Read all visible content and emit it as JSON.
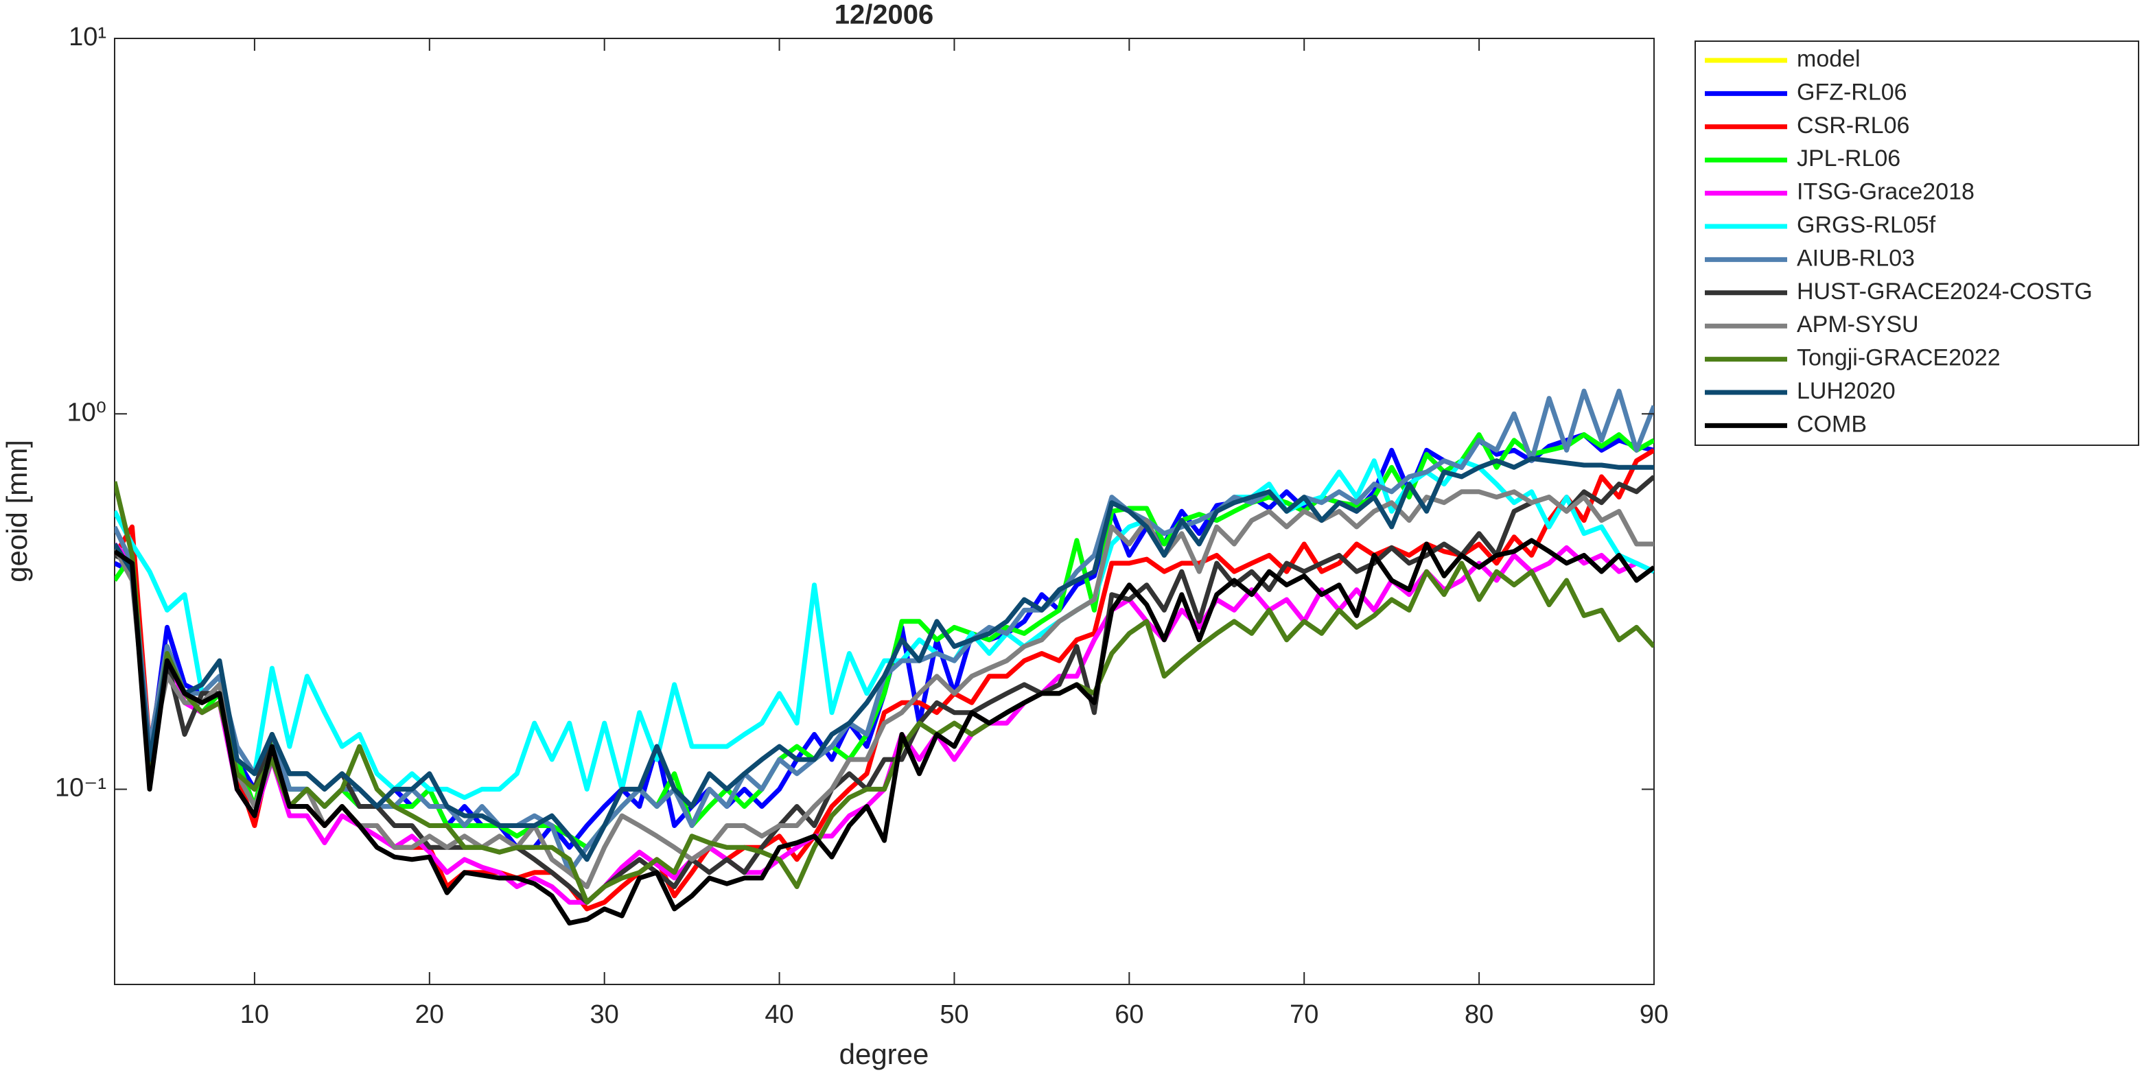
{
  "chart_data": {
    "type": "line",
    "title": "12/2006",
    "x_label": "degree",
    "y_label": "geoid [mm]",
    "log_y": true,
    "grid": false,
    "legend": "outside-right",
    "xlim": [
      2,
      90
    ],
    "xticks": [
      10,
      20,
      30,
      40,
      50,
      60,
      70,
      80,
      90
    ],
    "ylim": [
      0.0302,
      10
    ],
    "yticks": [
      {
        "value": 0.1,
        "label": "10⁻¹"
      },
      {
        "value": 1,
        "label": "10⁰"
      },
      {
        "value": 10,
        "label": "10¹"
      }
    ],
    "x": [
      2,
      3,
      4,
      5,
      6,
      7,
      8,
      9,
      10,
      11,
      12,
      13,
      14,
      15,
      16,
      17,
      18,
      19,
      20,
      21,
      22,
      23,
      24,
      25,
      26,
      27,
      28,
      29,
      30,
      31,
      32,
      33,
      34,
      35,
      36,
      37,
      38,
      39,
      40,
      41,
      42,
      43,
      44,
      45,
      46,
      47,
      48,
      49,
      50,
      51,
      52,
      53,
      54,
      55,
      56,
      57,
      58,
      59,
      60,
      61,
      62,
      63,
      64,
      65,
      66,
      67,
      68,
      69,
      70,
      71,
      72,
      73,
      74,
      75,
      76,
      77,
      78,
      79,
      80,
      81,
      82,
      83,
      84,
      85,
      86,
      87,
      88,
      89,
      90
    ],
    "series": [
      {
        "name": "model",
        "color": "#ffff00",
        "values": [
          null,
          null,
          null,
          null,
          null,
          null,
          null,
          null,
          null,
          null,
          null,
          null,
          null,
          null,
          null,
          null,
          null,
          null,
          null,
          null,
          null,
          null,
          null,
          null,
          null,
          null,
          null,
          null,
          null,
          null,
          null,
          null,
          null,
          null,
          null,
          null,
          null,
          null,
          null,
          null,
          null,
          null,
          null,
          null,
          null,
          null,
          null,
          null,
          null,
          null,
          null,
          null,
          null,
          null,
          null,
          null,
          null,
          null,
          null,
          null,
          null,
          null,
          null,
          null,
          null,
          null,
          null,
          null,
          null,
          null,
          null,
          null,
          null,
          null,
          null,
          null,
          null,
          null,
          null,
          null,
          null,
          null,
          null,
          null,
          null,
          null,
          null,
          null,
          null
        ]
      },
      {
        "name": "GFZ-RL06",
        "color": "#0000ff",
        "values": [
          0.4,
          0.38,
          0.12,
          0.27,
          0.19,
          0.18,
          0.2,
          0.12,
          0.1,
          0.14,
          0.1,
          0.1,
          0.09,
          0.1,
          0.09,
          0.09,
          0.1,
          0.09,
          0.1,
          0.08,
          0.09,
          0.08,
          0.08,
          0.07,
          0.07,
          0.08,
          0.07,
          0.08,
          0.09,
          0.1,
          0.09,
          0.13,
          0.08,
          0.09,
          0.1,
          0.09,
          0.1,
          0.09,
          0.1,
          0.12,
          0.14,
          0.12,
          0.15,
          0.13,
          0.18,
          0.27,
          0.15,
          0.25,
          0.18,
          0.26,
          0.25,
          0.26,
          0.28,
          0.33,
          0.3,
          0.35,
          0.37,
          0.55,
          0.42,
          0.5,
          0.45,
          0.55,
          0.48,
          0.57,
          0.58,
          0.6,
          0.56,
          0.62,
          0.56,
          0.6,
          0.58,
          0.55,
          0.62,
          0.8,
          0.62,
          0.8,
          0.75,
          0.72,
          0.85,
          0.78,
          0.8,
          0.75,
          0.82,
          0.85,
          0.88,
          0.8,
          0.85,
          0.82,
          0.8
        ]
      },
      {
        "name": "CSR-RL06",
        "color": "#ff0000",
        "values": [
          0.42,
          0.5,
          0.13,
          0.24,
          0.18,
          0.17,
          0.18,
          0.11,
          0.08,
          0.13,
          0.09,
          0.09,
          0.08,
          0.09,
          0.08,
          0.08,
          0.07,
          0.07,
          0.07,
          0.055,
          0.06,
          0.06,
          0.06,
          0.058,
          0.06,
          0.06,
          0.055,
          0.048,
          0.05,
          0.055,
          0.06,
          0.065,
          0.052,
          0.06,
          0.07,
          0.065,
          0.07,
          0.07,
          0.075,
          0.065,
          0.075,
          0.09,
          0.1,
          0.11,
          0.16,
          0.17,
          0.17,
          0.16,
          0.18,
          0.17,
          0.2,
          0.2,
          0.22,
          0.23,
          0.22,
          0.25,
          0.26,
          0.4,
          0.4,
          0.41,
          0.38,
          0.4,
          0.4,
          0.42,
          0.38,
          0.4,
          0.42,
          0.38,
          0.45,
          0.38,
          0.4,
          0.45,
          0.42,
          0.44,
          0.42,
          0.45,
          0.43,
          0.42,
          0.45,
          0.4,
          0.47,
          0.42,
          0.52,
          0.6,
          0.52,
          0.68,
          0.6,
          0.75,
          0.8
        ]
      },
      {
        "name": "JPL-RL06",
        "color": "#00ff00",
        "values": [
          0.36,
          0.42,
          0.12,
          0.24,
          0.18,
          0.16,
          0.18,
          0.12,
          0.09,
          0.14,
          0.1,
          0.1,
          0.09,
          0.1,
          0.09,
          0.09,
          0.09,
          0.09,
          0.1,
          0.08,
          0.08,
          0.08,
          0.08,
          0.075,
          0.08,
          0.08,
          0.075,
          0.07,
          0.08,
          0.09,
          0.1,
          0.09,
          0.11,
          0.08,
          0.09,
          0.1,
          0.09,
          0.1,
          0.12,
          0.13,
          0.12,
          0.13,
          0.12,
          0.14,
          0.18,
          0.28,
          0.28,
          0.25,
          0.27,
          0.26,
          0.25,
          0.27,
          0.26,
          0.28,
          0.3,
          0.46,
          0.3,
          0.55,
          0.56,
          0.56,
          0.45,
          0.52,
          0.54,
          0.52,
          0.55,
          0.58,
          0.6,
          0.58,
          0.55,
          0.6,
          0.58,
          0.57,
          0.6,
          0.72,
          0.6,
          0.78,
          0.7,
          0.75,
          0.88,
          0.72,
          0.85,
          0.78,
          0.8,
          0.82,
          0.88,
          0.82,
          0.88,
          0.8,
          0.85
        ]
      },
      {
        "name": "ITSG-Grace2018",
        "color": "#ff00ff",
        "values": [
          0.45,
          0.4,
          0.11,
          0.23,
          0.17,
          0.16,
          0.17,
          0.1,
          0.085,
          0.12,
          0.085,
          0.085,
          0.072,
          0.085,
          0.08,
          0.075,
          0.07,
          0.075,
          0.068,
          0.06,
          0.065,
          0.062,
          0.06,
          0.055,
          0.058,
          0.055,
          0.05,
          0.05,
          0.055,
          0.062,
          0.068,
          0.063,
          0.058,
          0.065,
          0.07,
          0.065,
          0.06,
          0.06,
          0.065,
          0.07,
          0.075,
          0.075,
          0.085,
          0.09,
          0.1,
          0.14,
          0.12,
          0.14,
          0.12,
          0.14,
          0.15,
          0.15,
          0.17,
          0.18,
          0.2,
          0.2,
          0.25,
          0.3,
          0.32,
          0.28,
          0.25,
          0.3,
          0.27,
          0.32,
          0.3,
          0.34,
          0.3,
          0.32,
          0.28,
          0.34,
          0.3,
          0.34,
          0.3,
          0.36,
          0.33,
          0.38,
          0.34,
          0.36,
          0.4,
          0.36,
          0.42,
          0.38,
          0.4,
          0.44,
          0.4,
          0.42,
          0.38,
          0.4,
          0.38
        ]
      },
      {
        "name": "GRGS-RL05f",
        "color": "#00ffff",
        "values": [
          0.55,
          0.45,
          0.38,
          0.3,
          0.33,
          0.18,
          0.2,
          0.12,
          0.11,
          0.21,
          0.13,
          0.2,
          0.16,
          0.13,
          0.14,
          0.11,
          0.1,
          0.11,
          0.1,
          0.1,
          0.095,
          0.1,
          0.1,
          0.11,
          0.15,
          0.12,
          0.15,
          0.1,
          0.15,
          0.1,
          0.16,
          0.12,
          0.19,
          0.13,
          0.13,
          0.13,
          0.14,
          0.15,
          0.18,
          0.15,
          0.35,
          0.16,
          0.23,
          0.18,
          0.22,
          0.22,
          0.25,
          0.23,
          0.22,
          0.26,
          0.23,
          0.26,
          0.24,
          0.26,
          0.28,
          0.3,
          0.32,
          0.45,
          0.5,
          0.52,
          0.48,
          0.5,
          0.52,
          0.55,
          0.6,
          0.6,
          0.65,
          0.55,
          0.58,
          0.6,
          0.7,
          0.6,
          0.75,
          0.55,
          0.65,
          0.7,
          0.65,
          0.75,
          0.72,
          0.65,
          0.58,
          0.62,
          0.5,
          0.6,
          0.48,
          0.5,
          0.42,
          0.4,
          0.38
        ]
      },
      {
        "name": "AIUB-RL03",
        "color": "#5080b0",
        "values": [
          0.5,
          0.4,
          0.13,
          0.24,
          0.18,
          0.18,
          0.2,
          0.13,
          0.11,
          0.14,
          0.1,
          0.1,
          0.09,
          0.1,
          0.1,
          0.09,
          0.09,
          0.1,
          0.09,
          0.09,
          0.08,
          0.09,
          0.08,
          0.08,
          0.085,
          0.08,
          0.06,
          0.07,
          0.08,
          0.09,
          0.1,
          0.09,
          0.1,
          0.08,
          0.1,
          0.09,
          0.11,
          0.1,
          0.12,
          0.11,
          0.12,
          0.13,
          0.15,
          0.14,
          0.2,
          0.22,
          0.22,
          0.23,
          0.22,
          0.25,
          0.27,
          0.26,
          0.3,
          0.3,
          0.33,
          0.38,
          0.42,
          0.6,
          0.55,
          0.52,
          0.48,
          0.5,
          0.52,
          0.55,
          0.6,
          0.58,
          0.62,
          0.55,
          0.6,
          0.58,
          0.62,
          0.58,
          0.65,
          0.62,
          0.68,
          0.7,
          0.75,
          0.72,
          0.85,
          0.8,
          1.0,
          0.75,
          1.1,
          0.8,
          1.15,
          0.85,
          1.15,
          0.8,
          1.05
        ]
      },
      {
        "name": "HUST-GRACE2024-COSTG",
        "color": "#333333",
        "values": [
          0.42,
          0.4,
          0.11,
          0.22,
          0.14,
          0.18,
          0.18,
          0.11,
          0.1,
          0.14,
          0.11,
          0.11,
          0.1,
          0.11,
          0.09,
          0.09,
          0.08,
          0.08,
          0.07,
          0.07,
          0.07,
          0.07,
          0.068,
          0.07,
          0.065,
          0.06,
          0.055,
          0.05,
          0.055,
          0.06,
          0.065,
          0.06,
          0.055,
          0.065,
          0.06,
          0.065,
          0.06,
          0.07,
          0.08,
          0.09,
          0.08,
          0.1,
          0.11,
          0.1,
          0.12,
          0.12,
          0.15,
          0.17,
          0.16,
          0.16,
          0.17,
          0.18,
          0.19,
          0.18,
          0.19,
          0.24,
          0.16,
          0.33,
          0.32,
          0.35,
          0.3,
          0.38,
          0.28,
          0.4,
          0.35,
          0.38,
          0.34,
          0.4,
          0.38,
          0.4,
          0.42,
          0.38,
          0.4,
          0.44,
          0.4,
          0.42,
          0.45,
          0.42,
          0.48,
          0.42,
          0.55,
          0.58,
          0.6,
          0.55,
          0.62,
          0.58,
          0.65,
          0.62,
          0.68
        ]
      },
      {
        "name": "APM-SYSU",
        "color": "#808080",
        "values": [
          0.44,
          0.36,
          0.12,
          0.2,
          0.17,
          0.17,
          0.19,
          0.11,
          0.09,
          0.12,
          0.09,
          0.1,
          0.08,
          0.09,
          0.08,
          0.08,
          0.07,
          0.07,
          0.075,
          0.07,
          0.075,
          0.07,
          0.075,
          0.07,
          0.08,
          0.065,
          0.06,
          0.055,
          0.07,
          0.085,
          0.08,
          0.075,
          0.07,
          0.065,
          0.07,
          0.08,
          0.08,
          0.075,
          0.08,
          0.08,
          0.09,
          0.1,
          0.12,
          0.12,
          0.15,
          0.16,
          0.18,
          0.2,
          0.18,
          0.2,
          0.21,
          0.22,
          0.24,
          0.25,
          0.28,
          0.3,
          0.32,
          0.5,
          0.45,
          0.52,
          0.42,
          0.48,
          0.38,
          0.5,
          0.45,
          0.52,
          0.55,
          0.5,
          0.55,
          0.52,
          0.55,
          0.5,
          0.55,
          0.58,
          0.52,
          0.6,
          0.58,
          0.62,
          0.62,
          0.6,
          0.62,
          0.58,
          0.6,
          0.55,
          0.6,
          0.52,
          0.55,
          0.45,
          0.45
        ]
      },
      {
        "name": "Tongji-GRACE2022",
        "color": "#4d7f17",
        "values": [
          0.66,
          0.42,
          0.11,
          0.23,
          0.18,
          0.16,
          0.17,
          0.11,
          0.1,
          0.12,
          0.09,
          0.1,
          0.09,
          0.1,
          0.13,
          0.1,
          0.09,
          0.085,
          0.08,
          0.08,
          0.07,
          0.07,
          0.068,
          0.07,
          0.07,
          0.07,
          0.065,
          0.05,
          0.055,
          0.058,
          0.06,
          0.065,
          0.06,
          0.075,
          0.072,
          0.07,
          0.07,
          0.068,
          0.065,
          0.055,
          0.07,
          0.085,
          0.095,
          0.1,
          0.1,
          0.13,
          0.15,
          0.14,
          0.15,
          0.14,
          0.15,
          0.16,
          0.17,
          0.18,
          0.18,
          0.19,
          0.18,
          0.23,
          0.26,
          0.28,
          0.2,
          0.22,
          0.24,
          0.26,
          0.28,
          0.26,
          0.3,
          0.25,
          0.28,
          0.26,
          0.3,
          0.27,
          0.29,
          0.32,
          0.3,
          0.38,
          0.33,
          0.4,
          0.32,
          0.38,
          0.35,
          0.38,
          0.31,
          0.36,
          0.29,
          0.3,
          0.25,
          0.27,
          0.24
        ]
      },
      {
        "name": "LUH2020",
        "color": "#0d4a70",
        "values": [
          0.45,
          0.38,
          0.12,
          0.22,
          0.18,
          0.19,
          0.22,
          0.12,
          0.11,
          0.14,
          0.11,
          0.11,
          0.1,
          0.11,
          0.1,
          0.09,
          0.1,
          0.1,
          0.11,
          0.09,
          0.085,
          0.085,
          0.08,
          0.08,
          0.08,
          0.085,
          0.075,
          0.065,
          0.08,
          0.1,
          0.1,
          0.13,
          0.1,
          0.09,
          0.11,
          0.1,
          0.11,
          0.12,
          0.13,
          0.12,
          0.12,
          0.14,
          0.15,
          0.17,
          0.2,
          0.25,
          0.22,
          0.28,
          0.24,
          0.25,
          0.26,
          0.28,
          0.32,
          0.3,
          0.34,
          0.36,
          0.38,
          0.58,
          0.55,
          0.5,
          0.42,
          0.52,
          0.45,
          0.55,
          0.58,
          0.6,
          0.62,
          0.55,
          0.6,
          0.52,
          0.58,
          0.55,
          0.6,
          0.5,
          0.65,
          0.55,
          0.7,
          0.68,
          0.72,
          0.75,
          0.72,
          0.76,
          0.75,
          0.74,
          0.73,
          0.73,
          0.72,
          0.72,
          0.72
        ]
      },
      {
        "name": "COMB",
        "color": "#000000",
        "values": [
          0.43,
          0.4,
          0.1,
          0.22,
          0.18,
          0.17,
          0.18,
          0.1,
          0.085,
          0.13,
          0.09,
          0.09,
          0.08,
          0.09,
          0.08,
          0.07,
          0.066,
          0.065,
          0.066,
          0.053,
          0.06,
          0.059,
          0.058,
          0.058,
          0.056,
          0.052,
          0.044,
          0.045,
          0.048,
          0.046,
          0.058,
          0.06,
          0.048,
          0.052,
          0.058,
          0.056,
          0.058,
          0.058,
          0.07,
          0.072,
          0.075,
          0.066,
          0.08,
          0.09,
          0.073,
          0.14,
          0.11,
          0.14,
          0.13,
          0.16,
          0.15,
          0.16,
          0.17,
          0.18,
          0.18,
          0.19,
          0.17,
          0.3,
          0.35,
          0.31,
          0.25,
          0.33,
          0.25,
          0.33,
          0.36,
          0.33,
          0.38,
          0.35,
          0.37,
          0.33,
          0.35,
          0.29,
          0.42,
          0.36,
          0.34,
          0.45,
          0.37,
          0.42,
          0.39,
          0.42,
          0.43,
          0.46,
          0.43,
          0.4,
          0.42,
          0.38,
          0.42,
          0.36,
          0.39
        ]
      }
    ]
  }
}
